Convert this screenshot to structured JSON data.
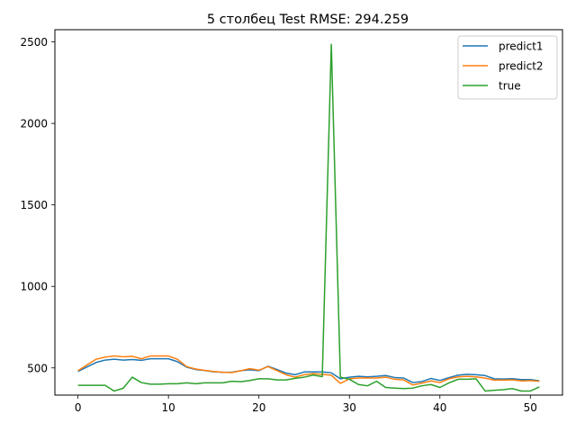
{
  "chart_data": {
    "type": "line",
    "title": "5 столбец Test RMSE: 294.259",
    "xlabel": "",
    "ylabel": "",
    "xlim": [
      -2.55,
      53.55
    ],
    "ylim": [
      333,
      2575
    ],
    "xticks": [
      0,
      10,
      20,
      30,
      40,
      50
    ],
    "yticks": [
      500,
      1000,
      1500,
      2000,
      2500
    ],
    "grid": false,
    "legend_position": "top-right",
    "series": [
      {
        "name": "predict1",
        "color": "#1f77b4",
        "x": [
          0,
          1,
          2,
          3,
          4,
          5,
          6,
          7,
          8,
          9,
          10,
          11,
          12,
          13,
          14,
          15,
          16,
          17,
          18,
          19,
          20,
          21,
          22,
          23,
          24,
          25,
          26,
          27,
          28,
          29,
          30,
          31,
          32,
          33,
          34,
          35,
          36,
          37,
          38,
          39,
          40,
          41,
          42,
          43,
          44,
          45,
          46,
          47,
          48,
          49,
          50,
          51
        ],
        "y": [
          478,
          506,
          533,
          548,
          553,
          548,
          551,
          546,
          556,
          556,
          556,
          538,
          505,
          490,
          484,
          476,
          473,
          473,
          483,
          488,
          483,
          510,
          490,
          468,
          458,
          475,
          475,
          475,
          470,
          433,
          443,
          448,
          445,
          448,
          453,
          441,
          438,
          410,
          416,
          435,
          423,
          440,
          455,
          461,
          458,
          453,
          433,
          432,
          434,
          428,
          428,
          421
        ]
      },
      {
        "name": "predict2",
        "color": "#ff7f0e",
        "x": [
          0,
          1,
          2,
          3,
          4,
          5,
          6,
          7,
          8,
          9,
          10,
          11,
          12,
          13,
          14,
          15,
          16,
          17,
          18,
          19,
          20,
          21,
          22,
          23,
          24,
          25,
          26,
          27,
          28,
          29,
          30,
          31,
          32,
          33,
          34,
          35,
          36,
          37,
          38,
          39,
          40,
          41,
          42,
          43,
          44,
          45,
          46,
          47,
          48,
          49,
          50,
          51
        ],
        "y": [
          483,
          518,
          553,
          566,
          573,
          568,
          571,
          556,
          573,
          573,
          573,
          553,
          508,
          493,
          485,
          478,
          473,
          471,
          483,
          495,
          486,
          508,
          483,
          458,
          443,
          458,
          465,
          460,
          455,
          405,
          433,
          438,
          438,
          438,
          443,
          430,
          426,
          395,
          406,
          420,
          410,
          433,
          445,
          448,
          445,
          437,
          425,
          425,
          427,
          420,
          422,
          418
        ]
      },
      {
        "name": "true",
        "color": "#2ca02c",
        "x": [
          0,
          1,
          2,
          3,
          4,
          5,
          6,
          7,
          8,
          9,
          10,
          11,
          12,
          13,
          14,
          15,
          16,
          17,
          18,
          19,
          20,
          21,
          22,
          23,
          24,
          25,
          26,
          27,
          28,
          29,
          30,
          31,
          32,
          33,
          34,
          35,
          36,
          37,
          38,
          39,
          40,
          41,
          42,
          43,
          44,
          45,
          46,
          47,
          48,
          49,
          50,
          51
        ],
        "y": [
          393,
          393,
          393,
          393,
          358,
          375,
          443,
          410,
          400,
          400,
          403,
          403,
          408,
          403,
          408,
          408,
          408,
          418,
          415,
          423,
          433,
          433,
          426,
          426,
          436,
          443,
          456,
          446,
          2485,
          443,
          430,
          398,
          390,
          418,
          380,
          376,
          373,
          376,
          390,
          398,
          380,
          408,
          430,
          430,
          433,
          358,
          363,
          366,
          373,
          358,
          358,
          383
        ]
      }
    ]
  }
}
